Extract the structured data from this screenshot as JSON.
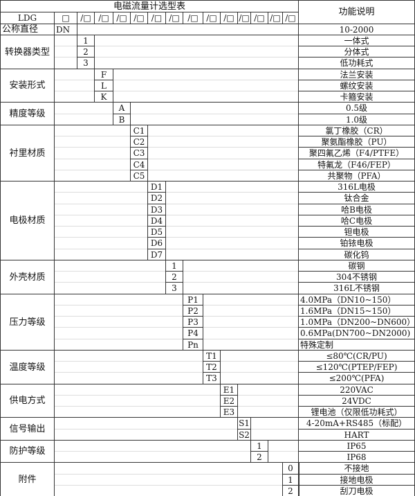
{
  "title": "电磁流量计选型表",
  "function_header": "功能说明",
  "model_row": {
    "prefix": "LDG",
    "first_slot": "□",
    "slots": [
      "/□",
      "/□",
      "/□",
      "/□",
      "/□",
      "/□",
      "/□",
      "/□",
      "/□",
      "/□",
      "/□",
      "/□",
      "/□"
    ]
  },
  "nominal": {
    "label": "公称直径",
    "code": "DN",
    "description": "10-2000"
  },
  "groups": [
    {
      "label": "转换器类型",
      "col": 0,
      "codes": [
        "1",
        "2",
        "3"
      ],
      "descriptions": [
        "一体式",
        "分体式",
        "低功耗式"
      ]
    },
    {
      "label": "安装形式",
      "col": 1,
      "codes": [
        "F",
        "L",
        "K"
      ],
      "descriptions": [
        "法兰安装",
        "螺纹安装",
        "卡箍安装"
      ]
    },
    {
      "label": "精度等级",
      "col": 2,
      "codes": [
        "A",
        "B"
      ],
      "descriptions": [
        "0.5级",
        "1.0级"
      ]
    },
    {
      "label": "衬里材质",
      "col": 3,
      "codes": [
        "C1",
        "C2",
        "C3",
        "C4",
        "C5"
      ],
      "descriptions": [
        "氯丁橡胶（CR）",
        "聚氨酯橡胶（PU）",
        "聚四氟乙烯（F4/PTFE）",
        "特氟龙（F46/FEP）",
        "共聚物（PFA）"
      ]
    },
    {
      "label": "电极材质",
      "col": 4,
      "codes": [
        "D1",
        "D2",
        "D3",
        "D4",
        "D5",
        "D6",
        "D7"
      ],
      "descriptions": [
        "316L电极",
        "钛合金",
        "哈B电极",
        "哈C电极",
        "钽电极",
        "铂铱电极",
        "碳化钨"
      ]
    },
    {
      "label": "外壳材质",
      "col": 5,
      "codes": [
        "1",
        "2",
        "3"
      ],
      "descriptions": [
        "碳钢",
        "304不锈钢",
        "316L不锈钢"
      ]
    },
    {
      "label": "压力等级",
      "col": 6,
      "align": "left",
      "codes": [
        "P1",
        "P2",
        "P3",
        "P4",
        "Pn"
      ],
      "descriptions": [
        "4.0MPa（DN10~150）",
        "1.6MPa（DN15~150）",
        "1.0MPa（DN200~DN600）",
        "0.6MPa(DN700~DN2000)",
        "特殊定制"
      ]
    },
    {
      "label": "温度等级",
      "col": 7,
      "codes": [
        "T1",
        "T2",
        "T3"
      ],
      "descriptions": [
        "≤80℃(CR/PU)",
        "≤120℃(PTEP/FEP)",
        "≤200℃(PFA)"
      ]
    },
    {
      "label": "供电方式",
      "col": 8,
      "codes": [
        "E1",
        "E2",
        "E3"
      ],
      "descriptions": [
        "220VAC",
        "24VDC",
        "锂电池（仅限低功耗式）"
      ]
    },
    {
      "label": "信号输出",
      "col": 9,
      "codes": [
        "S1",
        "S2"
      ],
      "descriptions": [
        "4-20mA+RS485（标配）",
        "HART"
      ]
    },
    {
      "label": "防护等级",
      "col": 10,
      "codes": [
        "1",
        "2"
      ],
      "descriptions": [
        "IP65",
        "IP68"
      ]
    },
    {
      "label": "附件",
      "col": 12,
      "codes": [
        "0",
        "1",
        "2"
      ],
      "descriptions": [
        "不接地",
        "接地电极",
        "刮刀电极"
      ]
    }
  ]
}
